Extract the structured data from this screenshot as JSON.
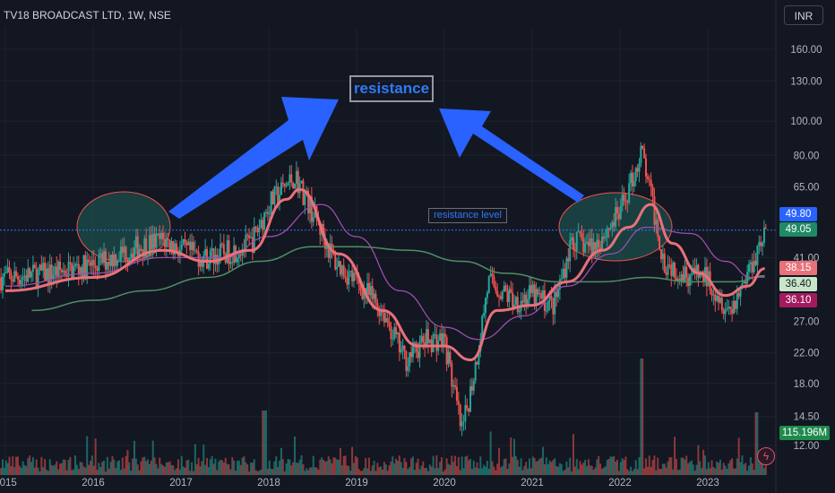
{
  "header": {
    "symbol": "TV18 BROADCAST LTD, 1W, NSE",
    "currency_button": "INR"
  },
  "annotations": {
    "resistance_label": "resistance",
    "resistance_level_label": "resistance level"
  },
  "tags": {
    "price_high": "49.80",
    "price_last": "49.05",
    "ma_red": "38.15",
    "ma_green": "36.40",
    "ma_purple": "36.10",
    "volume": "115.196M"
  },
  "colors": {
    "background": "#131722",
    "up": "#26a69a",
    "down": "#ef5350",
    "ma_red": "#e8717a",
    "ma_purple": "#9c4ea9",
    "ma_green": "#4e8f63",
    "resistance_line": "#3179f5",
    "arrow": "#2962ff",
    "highlight": "#1e5a55"
  },
  "chart_data": {
    "type": "candlestick",
    "title": "TV18 BROADCAST LTD, 1W, NSE",
    "y_scale": "log",
    "ylim": [
      11,
      200
    ],
    "y_ticks": [
      160.0,
      130.0,
      100.0,
      80.0,
      65.0,
      41.0,
      27.0,
      22.0,
      18.0,
      14.5,
      12.0
    ],
    "x_ticks": [
      "2015",
      "2016",
      "2017",
      "2018",
      "2019",
      "2020",
      "2021",
      "2022",
      "2023"
    ],
    "resistance_level": 49.05,
    "last_price": 49.05,
    "high_price": 49.8,
    "ma_values": {
      "red": 38.15,
      "green": 36.4,
      "purple": 36.1
    },
    "last_volume": "115.196M",
    "price_path": [
      {
        "date": "2015.0",
        "price": 36
      },
      {
        "date": "2015.5",
        "price": 37
      },
      {
        "date": "2016.0",
        "price": 39
      },
      {
        "date": "2016.5",
        "price": 44
      },
      {
        "date": "2016.8",
        "price": 46
      },
      {
        "date": "2017.0",
        "price": 43
      },
      {
        "date": "2017.3",
        "price": 41
      },
      {
        "date": "2017.6",
        "price": 43
      },
      {
        "date": "2017.8",
        "price": 45
      },
      {
        "date": "2018.0",
        "price": 58
      },
      {
        "date": "2018.3",
        "price": 70
      },
      {
        "date": "2018.55",
        "price": 52
      },
      {
        "date": "2018.75",
        "price": 40
      },
      {
        "date": "2019.0",
        "price": 35
      },
      {
        "date": "2019.3",
        "price": 29
      },
      {
        "date": "2019.55",
        "price": 21
      },
      {
        "date": "2019.8",
        "price": 24
      },
      {
        "date": "2020.0",
        "price": 24
      },
      {
        "date": "2020.2",
        "price": 13
      },
      {
        "date": "2020.35",
        "price": 20
      },
      {
        "date": "2020.5",
        "price": 35
      },
      {
        "date": "2020.8",
        "price": 31
      },
      {
        "date": "2021.0",
        "price": 32
      },
      {
        "date": "2021.25",
        "price": 30
      },
      {
        "date": "2021.45",
        "price": 46
      },
      {
        "date": "2021.7",
        "price": 44
      },
      {
        "date": "2022.0",
        "price": 55
      },
      {
        "date": "2022.25",
        "price": 82
      },
      {
        "date": "2022.5",
        "price": 40
      },
      {
        "date": "2022.75",
        "price": 37
      },
      {
        "date": "2023.0",
        "price": 36
      },
      {
        "date": "2023.25",
        "price": 29
      },
      {
        "date": "2023.45",
        "price": 37
      },
      {
        "date": "2023.65",
        "price": 49
      }
    ],
    "ma_red_path": [
      {
        "date": "2015.0",
        "price": 33
      },
      {
        "date": "2016.0",
        "price": 36
      },
      {
        "date": "2016.8",
        "price": 43
      },
      {
        "date": "2017.3",
        "price": 40
      },
      {
        "date": "2017.8",
        "price": 43
      },
      {
        "date": "2018.2",
        "price": 60
      },
      {
        "date": "2018.35",
        "price": 64
      },
      {
        "date": "2018.8",
        "price": 42
      },
      {
        "date": "2019.3",
        "price": 29
      },
      {
        "date": "2019.7",
        "price": 23
      },
      {
        "date": "2020.0",
        "price": 23
      },
      {
        "date": "2020.3",
        "price": 21
      },
      {
        "date": "2020.6",
        "price": 29
      },
      {
        "date": "2021.0",
        "price": 30
      },
      {
        "date": "2021.4",
        "price": 35
      },
      {
        "date": "2021.8",
        "price": 43
      },
      {
        "date": "2022.1",
        "price": 50
      },
      {
        "date": "2022.35",
        "price": 58
      },
      {
        "date": "2022.6",
        "price": 45
      },
      {
        "date": "2022.9",
        "price": 37
      },
      {
        "date": "2023.2",
        "price": 32
      },
      {
        "date": "2023.45",
        "price": 34
      },
      {
        "date": "2023.65",
        "price": 38.15
      }
    ],
    "ma_purple_path": [
      {
        "date": "2015.0",
        "price": 34
      },
      {
        "date": "2016.0",
        "price": 37
      },
      {
        "date": "2016.8",
        "price": 41
      },
      {
        "date": "2017.5",
        "price": 41
      },
      {
        "date": "2018.0",
        "price": 47
      },
      {
        "date": "2018.6",
        "price": 58
      },
      {
        "date": "2019.0",
        "price": 47
      },
      {
        "date": "2019.5",
        "price": 33
      },
      {
        "date": "2020.0",
        "price": 26
      },
      {
        "date": "2020.4",
        "price": 24
      },
      {
        "date": "2020.9",
        "price": 28
      },
      {
        "date": "2021.4",
        "price": 34
      },
      {
        "date": "2021.9",
        "price": 42
      },
      {
        "date": "2022.3",
        "price": 50
      },
      {
        "date": "2022.8",
        "price": 48
      },
      {
        "date": "2023.2",
        "price": 40
      },
      {
        "date": "2023.5",
        "price": 36
      },
      {
        "date": "2023.65",
        "price": 36.1
      }
    ],
    "ma_green_path": [
      {
        "date": "2015.3",
        "price": 29
      },
      {
        "date": "2016.0",
        "price": 31
      },
      {
        "date": "2016.6",
        "price": 33
      },
      {
        "date": "2017.3",
        "price": 36
      },
      {
        "date": "2017.9",
        "price": 40
      },
      {
        "date": "2018.5",
        "price": 44
      },
      {
        "date": "2019.0",
        "price": 44
      },
      {
        "date": "2019.6",
        "price": 43
      },
      {
        "date": "2020.2",
        "price": 40
      },
      {
        "date": "2020.7",
        "price": 37
      },
      {
        "date": "2021.3",
        "price": 35
      },
      {
        "date": "2021.8",
        "price": 35
      },
      {
        "date": "2022.3",
        "price": 36
      },
      {
        "date": "2022.8",
        "price": 35
      },
      {
        "date": "2023.3",
        "price": 35
      },
      {
        "date": "2023.65",
        "price": 36.4
      }
    ]
  }
}
